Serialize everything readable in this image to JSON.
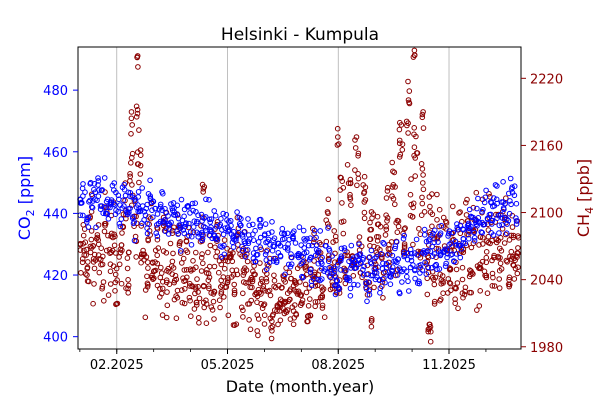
{
  "colors": {
    "co2": "#0000ff",
    "ch4": "#8b0000",
    "axis": "#000000",
    "grid": "#b0b0b0"
  },
  "chart_data": {
    "type": "scatter",
    "title": "Helsinki - Kumpula",
    "xlabel": "Date (month.year)",
    "x_ticks": [
      {
        "label": "02.2025",
        "month": 1
      },
      {
        "label": "05.2025",
        "month": 4
      },
      {
        "label": "08.2025",
        "month": 7
      },
      {
        "label": "11.2025",
        "month": 10
      }
    ],
    "xlim_months": [
      -0.05,
      11.95
    ],
    "marker": "open-circle",
    "grid": "vertical-major",
    "left_axis": {
      "label": "CO",
      "label_sub": "2",
      "label_unit": " [ppm]",
      "ylim": [
        396,
        494
      ],
      "ticks": [
        "400",
        "420",
        "440",
        "460",
        "480"
      ]
    },
    "right_axis": {
      "label": "CH",
      "label_sub": "4",
      "label_unit": " [ppb]",
      "ylim": [
        1978,
        2248
      ],
      "ticks": [
        "1980",
        "2040",
        "2100",
        "2160",
        "2220"
      ]
    },
    "series": [
      {
        "name": "CO2",
        "axis": "left",
        "color": "#0000ff",
        "x_months": [
          0.0,
          0.1,
          0.2,
          0.3,
          0.4,
          0.5,
          0.6,
          0.7,
          0.8,
          0.9,
          1.0,
          1.1,
          1.2,
          1.3,
          1.4,
          1.5,
          1.6,
          1.7,
          1.8,
          1.9,
          2.0,
          2.1,
          2.2,
          2.3,
          2.4,
          2.5,
          2.6,
          2.7,
          2.8,
          2.9,
          3.0,
          3.1,
          3.2,
          3.3,
          3.4,
          3.5,
          3.6,
          3.7,
          3.8,
          3.9,
          4.0,
          4.1,
          4.2,
          4.3,
          4.4,
          4.5,
          4.6,
          4.7,
          4.8,
          4.9,
          5.0,
          5.1,
          5.2,
          5.3,
          5.4,
          5.5,
          5.6,
          5.7,
          5.8,
          5.9,
          6.0,
          6.1,
          6.2,
          6.3,
          6.4,
          6.5,
          6.6,
          6.7,
          6.8,
          6.9,
          7.0,
          7.1,
          7.2,
          7.3,
          7.4,
          7.5,
          7.6,
          7.7,
          7.8,
          7.9,
          8.0,
          8.1,
          8.2,
          8.3,
          8.4,
          8.5,
          8.6,
          8.7,
          8.8,
          8.9,
          9.0,
          9.1,
          9.2,
          9.3,
          9.4,
          9.5,
          9.6,
          9.7,
          9.8,
          9.9,
          10.0,
          10.1,
          10.2,
          10.3,
          10.4,
          10.5,
          10.6,
          10.7,
          10.8,
          10.9,
          11.0,
          11.1,
          11.2,
          11.3,
          11.4,
          11.5,
          11.6,
          11.7,
          11.8,
          11.9
        ],
        "values": [
          443,
          445,
          441,
          446,
          443,
          447,
          442,
          444,
          441,
          446,
          443,
          440,
          445,
          441,
          443,
          438,
          444,
          442,
          439,
          443,
          441,
          438,
          442,
          440,
          437,
          441,
          439,
          436,
          440,
          438,
          435,
          439,
          437,
          434,
          438,
          436,
          433,
          437,
          435,
          432,
          436,
          434,
          431,
          436,
          433,
          430,
          435,
          432,
          429,
          434,
          431,
          428,
          432,
          429,
          427,
          431,
          428,
          426,
          430,
          427,
          425,
          430,
          427,
          424,
          428,
          426,
          423,
          427,
          424,
          420,
          418,
          425,
          421,
          417,
          423,
          420,
          426,
          422,
          419,
          424,
          421,
          418,
          425,
          422,
          419,
          426,
          423,
          420,
          427,
          424,
          428,
          425,
          422,
          429,
          426,
          430,
          427,
          424,
          431,
          428,
          432,
          429,
          434,
          431,
          436,
          433,
          438,
          435,
          440,
          437,
          442,
          439,
          441,
          444,
          440,
          443,
          441,
          445,
          442,
          444
        ]
      },
      {
        "name": "CH4",
        "axis": "right",
        "color": "#8b0000",
        "x_months": [
          0.0,
          0.1,
          0.2,
          0.3,
          0.4,
          0.5,
          0.6,
          0.7,
          0.8,
          0.9,
          1.0,
          1.1,
          1.2,
          1.3,
          1.4,
          1.5,
          1.6,
          1.7,
          1.8,
          1.9,
          2.0,
          2.1,
          2.2,
          2.3,
          2.4,
          2.5,
          2.6,
          2.7,
          2.8,
          2.9,
          3.0,
          3.1,
          3.2,
          3.3,
          3.4,
          3.5,
          3.6,
          3.7,
          3.8,
          3.9,
          4.0,
          4.1,
          4.2,
          4.3,
          4.4,
          4.5,
          4.6,
          4.7,
          4.8,
          4.9,
          5.0,
          5.1,
          5.2,
          5.3,
          5.4,
          5.5,
          5.6,
          5.7,
          5.8,
          5.9,
          6.0,
          6.1,
          6.2,
          6.3,
          6.4,
          6.5,
          6.6,
          6.7,
          6.8,
          6.9,
          7.0,
          7.1,
          7.2,
          7.3,
          7.4,
          7.5,
          7.6,
          7.7,
          7.8,
          7.9,
          8.0,
          8.1,
          8.2,
          8.3,
          8.4,
          8.5,
          8.6,
          8.7,
          8.8,
          8.9,
          9.0,
          9.1,
          9.2,
          9.3,
          9.4,
          9.5,
          9.6,
          9.7,
          9.8,
          9.9,
          10.0,
          10.1,
          10.2,
          10.3,
          10.4,
          10.5,
          10.6,
          10.7,
          10.8,
          10.9,
          11.0,
          11.1,
          11.2,
          11.3,
          11.4,
          11.5,
          11.6,
          11.7,
          11.8,
          11.9
        ],
        "values": [
          2060,
          2075,
          2045,
          2085,
          2050,
          2070,
          2040,
          2095,
          2055,
          2080,
          2045,
          2065,
          2100,
          2050,
          2130,
          2085,
          2140,
          2060,
          2040,
          2090,
          2050,
          2070,
          2040,
          2085,
          2035,
          2060,
          2030,
          2075,
          2040,
          2065,
          2030,
          2050,
          2025,
          2070,
          2035,
          2055,
          2025,
          2080,
          2030,
          2050,
          2040,
          2060,
          2030,
          2075,
          2035,
          2055,
          2025,
          2045,
          2020,
          2040,
          2015,
          2035,
          2010,
          2030,
          2015,
          2040,
          2020,
          2035,
          2010,
          2030,
          2025,
          2045,
          2020,
          2060,
          2030,
          2050,
          2015,
          2080,
          2040,
          2065,
          2040,
          2100,
          2050,
          2120,
          2060,
          2140,
          2050,
          2110,
          2045,
          2090,
          2050,
          2080,
          2040,
          2105,
          2060,
          2130,
          2070,
          2160,
          2080,
          2190,
          2100,
          2150,
          2070,
          2120,
          2050,
          2095,
          2040,
          2085,
          2035,
          2080,
          2040,
          2070,
          2035,
          2080,
          2045,
          2090,
          2050,
          2100,
          2040,
          2080,
          2050,
          2090,
          2045,
          2085,
          2055,
          2095,
          2050,
          2080,
          2060,
          2075
        ],
        "peaks": [
          {
            "x_month": 1.55,
            "value": 2240
          },
          {
            "x_month": 1.55,
            "value": 2195
          },
          {
            "x_month": 1.4,
            "value": 2190
          },
          {
            "x_month": 3.35,
            "value": 2125
          },
          {
            "x_month": 7.0,
            "value": 2175
          },
          {
            "x_month": 9.05,
            "value": 2245
          },
          {
            "x_month": 9.3,
            "value": 2190
          },
          {
            "x_month": 9.5,
            "value": 2000
          },
          {
            "x_month": 7.9,
            "value": 2005
          },
          {
            "x_month": 9.45,
            "value": 2000
          }
        ]
      }
    ]
  }
}
